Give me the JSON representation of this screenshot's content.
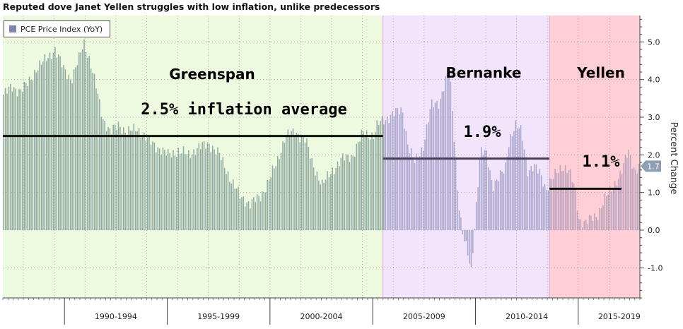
{
  "chart_data": {
    "type": "bar",
    "title": "Reputed dove Janet Yellen struggles with low inflation, unlike predecessors",
    "legend": {
      "label": "PCE Price Index (YoY)",
      "placement": "top-left"
    },
    "ylabel": "Percent Change",
    "ylim": [
      -1.8,
      5.7
    ],
    "y_ticks": [
      5.0,
      4.0,
      3.0,
      2.0,
      1.0,
      0.0,
      -1.0
    ],
    "y_tick_labels": [
      "5.0",
      "4.0",
      "3.0",
      "2.0",
      "1.0",
      "0.0",
      "-1.0"
    ],
    "grid": true,
    "x_start_year": 1987.0,
    "x_end_year": 2018.0,
    "bar_months_per_step": 1,
    "x_period_labels": [
      {
        "label": "1990-1994",
        "center_year": 1992.5
      },
      {
        "label": "1995-1999",
        "center_year": 1997.5
      },
      {
        "label": "2000-2004",
        "center_year": 2002.5
      },
      {
        "label": "2005-2009",
        "center_year": 2007.5
      },
      {
        "label": "2010-2014",
        "center_year": 2012.5
      },
      {
        "label": "2015-2019",
        "center_year": 2017.0
      }
    ],
    "x_major_ticks": [
      1990,
      1995,
      2000,
      2005,
      2010,
      2015
    ],
    "eras": [
      {
        "name": "Greenspan",
        "start_year": 1987.0,
        "end_year": 2005.5,
        "color": "#eefae0",
        "average": 2.5,
        "average_label": "2.5% inflation average"
      },
      {
        "name": "Bernanke",
        "start_year": 2005.5,
        "end_year": 2013.6,
        "color": "#f2e4fb",
        "average": 1.9,
        "average_label": "1.9%"
      },
      {
        "name": "Yellen",
        "start_year": 2013.6,
        "end_year": 2018.0,
        "color": "#ffcfd5",
        "average": 1.1,
        "average_label": "1.1%"
      }
    ],
    "anchors": [
      [
        1987.0,
        3.6
      ],
      [
        1987.4,
        3.8
      ],
      [
        1987.8,
        3.7
      ],
      [
        1988.2,
        3.9
      ],
      [
        1988.6,
        4.3
      ],
      [
        1989.0,
        4.5
      ],
      [
        1989.5,
        4.8
      ],
      [
        1989.9,
        4.3
      ],
      [
        1990.3,
        4.0
      ],
      [
        1990.7,
        4.6
      ],
      [
        1990.9,
        5.0
      ],
      [
        1991.2,
        4.5
      ],
      [
        1991.5,
        3.8
      ],
      [
        1991.8,
        3.0
      ],
      [
        1992.2,
        2.6
      ],
      [
        1992.6,
        2.8
      ],
      [
        1993.0,
        2.6
      ],
      [
        1993.5,
        2.7
      ],
      [
        1994.0,
        2.4
      ],
      [
        1994.5,
        2.2
      ],
      [
        1995.0,
        2.0
      ],
      [
        1995.5,
        2.1
      ],
      [
        1996.0,
        2.0
      ],
      [
        1996.5,
        2.2
      ],
      [
        1997.0,
        2.3
      ],
      [
        1997.5,
        2.0
      ],
      [
        1998.0,
        1.4
      ],
      [
        1998.5,
        0.9
      ],
      [
        1999.0,
        0.7
      ],
      [
        1999.5,
        0.9
      ],
      [
        1999.8,
        1.2
      ],
      [
        2000.3,
        1.8
      ],
      [
        2000.7,
        2.5
      ],
      [
        2001.2,
        2.6
      ],
      [
        2001.7,
        2.4
      ],
      [
        2002.0,
        1.8
      ],
      [
        2002.5,
        1.2
      ],
      [
        2003.0,
        1.6
      ],
      [
        2003.5,
        1.9
      ],
      [
        2004.0,
        2.0
      ],
      [
        2004.5,
        2.6
      ],
      [
        2005.0,
        2.5
      ],
      [
        2005.2,
        2.8
      ],
      [
        2005.4,
        2.9
      ],
      [
        2005.7,
        3.0
      ],
      [
        2006.0,
        3.1
      ],
      [
        2006.4,
        3.2
      ],
      [
        2006.7,
        2.2
      ],
      [
        2007.0,
        1.8
      ],
      [
        2007.4,
        2.2
      ],
      [
        2007.8,
        3.3
      ],
      [
        2008.2,
        3.4
      ],
      [
        2008.5,
        4.0
      ],
      [
        2008.7,
        4.2
      ],
      [
        2008.9,
        2.6
      ],
      [
        2009.1,
        1.0
      ],
      [
        2009.3,
        0.0
      ],
      [
        2009.6,
        -0.7
      ],
      [
        2009.75,
        -1.1
      ],
      [
        2009.9,
        0.0
      ],
      [
        2010.2,
        2.1
      ],
      [
        2010.5,
        2.0
      ],
      [
        2010.8,
        1.2
      ],
      [
        2011.1,
        1.4
      ],
      [
        2011.4,
        1.6
      ],
      [
        2011.6,
        2.4
      ],
      [
        2011.9,
        2.8
      ],
      [
        2012.2,
        2.6
      ],
      [
        2012.5,
        1.6
      ],
      [
        2012.8,
        1.7
      ],
      [
        2013.1,
        1.5
      ],
      [
        2013.4,
        1.1
      ],
      [
        2013.6,
        1.3
      ],
      [
        2013.9,
        1.5
      ],
      [
        2014.2,
        1.7
      ],
      [
        2014.5,
        1.6
      ],
      [
        2014.8,
        1.1
      ],
      [
        2015.0,
        0.3
      ],
      [
        2015.3,
        0.2
      ],
      [
        2015.6,
        0.3
      ],
      [
        2015.9,
        0.4
      ],
      [
        2016.2,
        0.8
      ],
      [
        2016.5,
        1.0
      ],
      [
        2016.8,
        1.3
      ],
      [
        2017.1,
        1.6
      ],
      [
        2017.4,
        2.1
      ],
      [
        2017.7,
        1.6
      ],
      [
        2018.0,
        1.7
      ]
    ],
    "last_value_badge": "1.7",
    "colors": {
      "greenspan_bar": "#8fa9a1",
      "bernanke_bar": "#a9a6cb",
      "yellen_bar": "#b9a3bd",
      "avg_line": "#111111",
      "bernanke_avg_line": "#473f55",
      "badge": "#8fa0b6",
      "legend_swatch": "#7f86ad"
    }
  }
}
